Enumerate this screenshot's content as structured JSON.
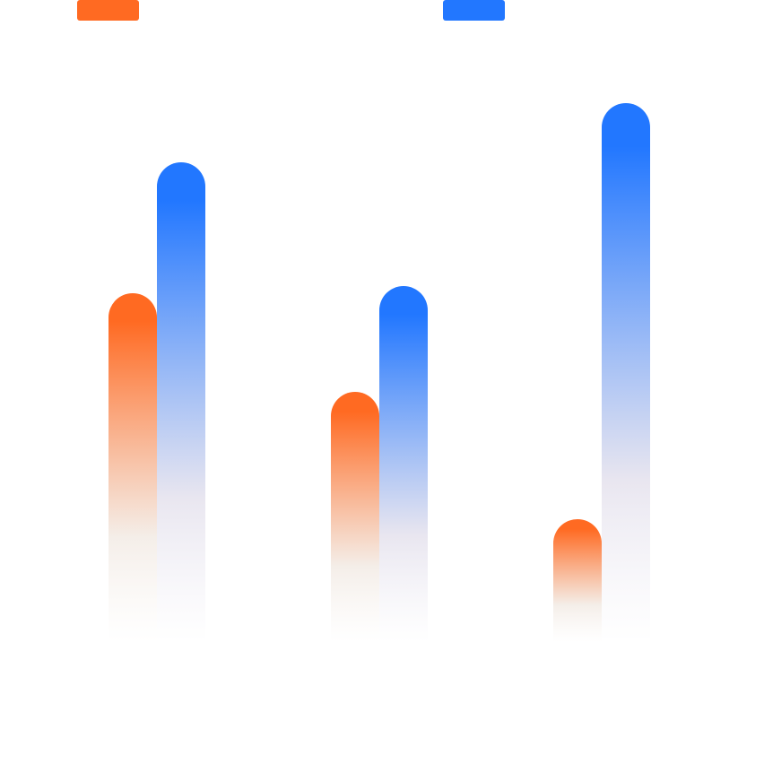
{
  "chart_data": {
    "type": "bar",
    "categories": [
      "",
      "",
      ""
    ],
    "series": [
      {
        "color": "#ff6a22",
        "values": [
          389,
          279,
          137
        ]
      },
      {
        "color": "#2277ff",
        "values": [
          535,
          397,
          601
        ]
      }
    ],
    "ylim": [
      0,
      714
    ],
    "grid": false,
    "legend": "top",
    "title": "",
    "xlabel": "",
    "ylabel": ""
  }
}
